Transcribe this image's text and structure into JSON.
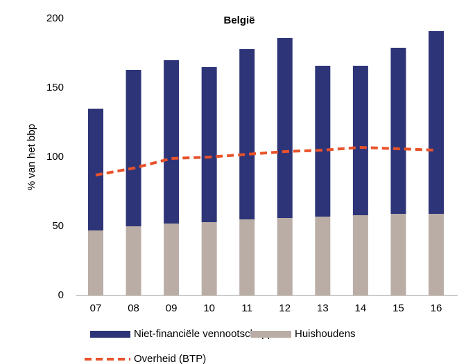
{
  "chart_data": {
    "type": "stacked-bar-line",
    "title": "België",
    "y_label": "% van het bbp",
    "categories": [
      "07",
      "08",
      "09",
      "10",
      "11",
      "12",
      "13",
      "14",
      "15",
      "16"
    ],
    "series": [
      {
        "name": "Niet-financiële vennootschappen",
        "color": "#2e3478",
        "kind": "bar",
        "values": [
          88,
          113,
          118,
          112,
          123,
          130,
          109,
          108,
          120,
          132
        ]
      },
      {
        "name": "Huishoudens",
        "color": "#b9ada6",
        "kind": "bar",
        "values": [
          47,
          50,
          52,
          53,
          55,
          56,
          57,
          58,
          59,
          59
        ]
      },
      {
        "name": "Overheid (BTP)",
        "color": "#e8522a",
        "kind": "dashed-line",
        "values": [
          87,
          92,
          99,
          100,
          102,
          104,
          105,
          107,
          106,
          105
        ]
      }
    ],
    "ylim": [
      0,
      200
    ],
    "yticks": [
      0,
      50,
      100,
      150,
      200
    ],
    "grid": false
  }
}
